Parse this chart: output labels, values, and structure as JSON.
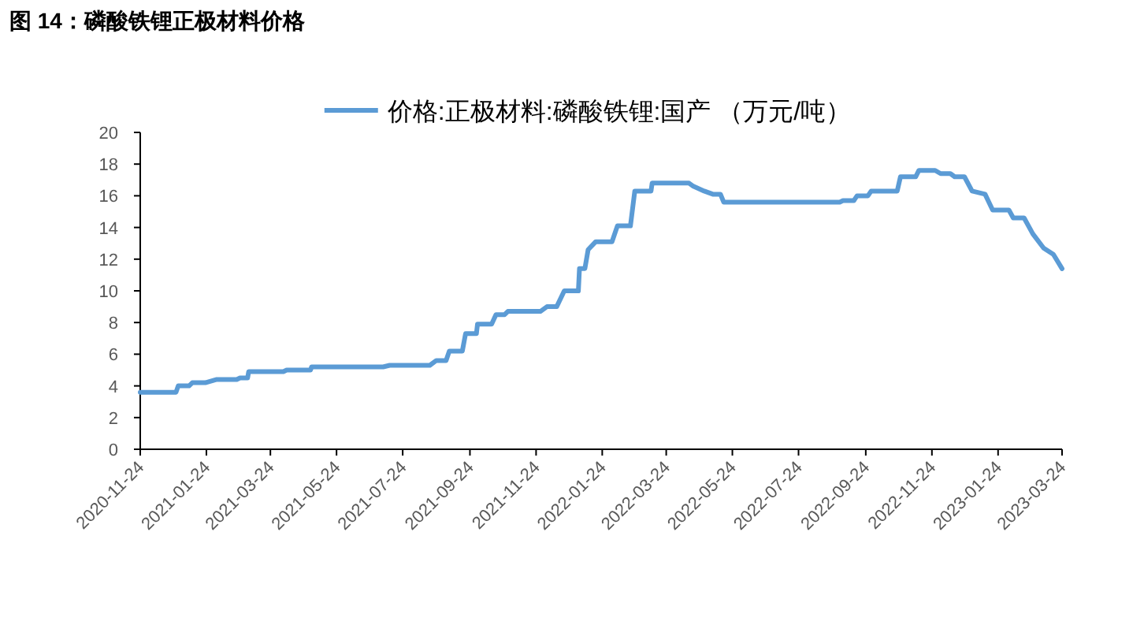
{
  "chart_data": {
    "type": "line",
    "title": "图 14：磷酸铁锂正极材料价格",
    "legend": "top",
    "xlim": [
      "2020-11-24",
      "2023-03-24"
    ],
    "xticks": [
      "2020-11-24",
      "2021-01-24",
      "2021-03-24",
      "2021-05-24",
      "2021-07-24",
      "2021-09-24",
      "2021-11-24",
      "2022-01-24",
      "2022-03-24",
      "2022-05-24",
      "2022-07-24",
      "2022-09-24",
      "2022-11-24",
      "2023-01-24",
      "2023-03-24"
    ],
    "ylim": [
      0,
      20
    ],
    "yticks": [
      0,
      2,
      4,
      6,
      8,
      10,
      12,
      14,
      16,
      18,
      20
    ],
    "x": [
      "2020-11-24",
      "2020-12-27",
      "2020-12-29",
      "2021-01-08",
      "2021-01-11",
      "2021-01-23",
      "2021-02-02",
      "2021-02-21",
      "2021-02-24",
      "2021-03-03",
      "2021-03-04",
      "2021-04-05",
      "2021-04-08",
      "2021-04-30",
      "2021-05-01",
      "2021-07-06",
      "2021-07-12",
      "2021-08-18",
      "2021-08-24",
      "2021-09-02",
      "2021-09-05",
      "2021-09-17",
      "2021-09-20",
      "2021-09-30",
      "2021-10-01",
      "2021-10-14",
      "2021-10-18",
      "2021-10-26",
      "2021-10-29",
      "2021-11-28",
      "2021-12-04",
      "2021-12-13",
      "2021-12-20",
      "2022-01-02",
      "2022-01-03",
      "2022-01-08",
      "2022-01-11",
      "2022-01-18",
      "2022-02-02",
      "2022-02-07",
      "2022-02-19",
      "2022-02-23",
      "2022-03-10",
      "2022-03-11",
      "2022-04-14",
      "2022-04-18",
      "2022-04-28",
      "2022-05-06",
      "2022-05-13",
      "2022-05-16",
      "2022-08-31",
      "2022-09-03",
      "2022-09-13",
      "2022-09-16",
      "2022-09-26",
      "2022-09-29",
      "2022-10-23",
      "2022-10-26",
      "2022-11-09",
      "2022-11-12",
      "2022-11-27",
      "2022-12-02",
      "2022-12-11",
      "2022-12-15",
      "2022-12-24",
      "2022-12-31",
      "2023-01-12",
      "2023-01-19",
      "2023-02-03",
      "2023-02-07",
      "2023-02-17",
      "2023-02-25",
      "2023-03-07",
      "2023-03-16",
      "2023-03-24"
    ],
    "series": [
      {
        "name": "价格:正极材料:磷酸铁锂:国产 （万元/吨）",
        "color": "#5b9bd5",
        "values": [
          3.6,
          3.6,
          4.0,
          4.0,
          4.2,
          4.2,
          4.4,
          4.4,
          4.5,
          4.5,
          4.9,
          4.9,
          5.0,
          5.0,
          5.2,
          5.2,
          5.3,
          5.3,
          5.6,
          5.6,
          6.2,
          6.2,
          7.3,
          7.3,
          7.9,
          7.9,
          8.5,
          8.5,
          8.7,
          8.7,
          9.0,
          9.0,
          10.0,
          10.0,
          11.4,
          11.4,
          12.6,
          13.1,
          13.1,
          14.1,
          14.1,
          16.3,
          16.3,
          16.8,
          16.8,
          16.6,
          16.3,
          16.1,
          16.1,
          15.6,
          15.6,
          15.7,
          15.7,
          16.0,
          16.0,
          16.3,
          16.3,
          17.2,
          17.2,
          17.6,
          17.6,
          17.4,
          17.4,
          17.2,
          17.2,
          16.3,
          16.1,
          15.1,
          15.1,
          14.6,
          14.6,
          13.6,
          12.7,
          12.3,
          11.4
        ]
      }
    ]
  }
}
